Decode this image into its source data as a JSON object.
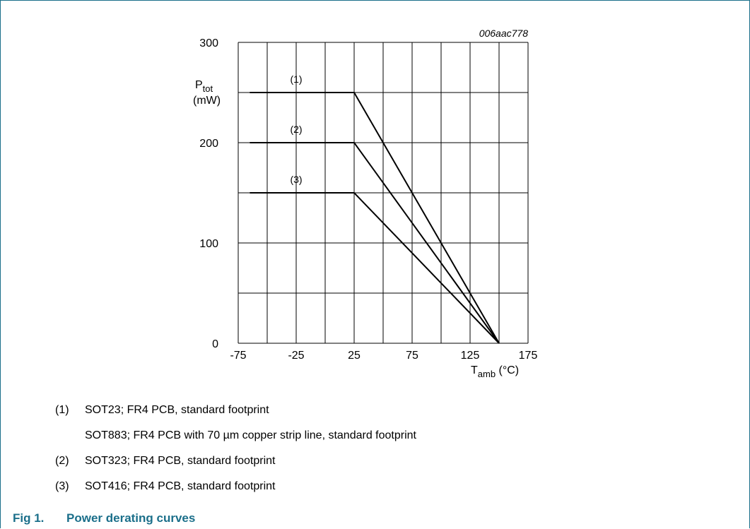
{
  "chart_data": {
    "type": "line",
    "code": "006aac778",
    "ylabel_main": "P",
    "ylabel_sub": "tot",
    "ylabel_unit": "(mW)",
    "xlabel_main": "T",
    "xlabel_sub": "amb",
    "xlabel_unit": "(°C)",
    "xlim": [
      -75,
      175
    ],
    "ylim": [
      0,
      300
    ],
    "x_ticks": [
      "-75",
      "-25",
      "25",
      "75",
      "125",
      "175"
    ],
    "y_ticks": [
      "0",
      "100",
      "200",
      "300"
    ],
    "x_grid": [
      -75,
      -50,
      -25,
      0,
      25,
      50,
      75,
      100,
      125,
      150,
      175
    ],
    "y_grid": [
      0,
      50,
      100,
      150,
      200,
      250,
      300
    ],
    "series": [
      {
        "label": "(1)",
        "label_x": -25,
        "points": [
          [
            -65,
            250
          ],
          [
            25,
            250
          ],
          [
            150,
            0
          ]
        ]
      },
      {
        "label": "(2)",
        "label_x": -25,
        "points": [
          [
            -65,
            200
          ],
          [
            25,
            200
          ],
          [
            150,
            0
          ]
        ]
      },
      {
        "label": "(3)",
        "label_x": -25,
        "points": [
          [
            -65,
            150
          ],
          [
            25,
            150
          ],
          [
            150,
            0
          ]
        ]
      }
    ]
  },
  "notes": [
    {
      "num": "(1)",
      "text": "SOT23; FR4 PCB, standard footprint"
    },
    {
      "num": "",
      "text": "SOT883; FR4 PCB with 70 µm copper strip line, standard footprint"
    },
    {
      "num": "(2)",
      "text": "SOT323; FR4 PCB, standard footprint"
    },
    {
      "num": "(3)",
      "text": "SOT416; FR4 PCB, standard footprint"
    }
  ],
  "figure": {
    "number": "Fig 1.",
    "title": "Power derating curves"
  },
  "colors": {
    "frame": "#1b6f8a",
    "caption": "#1b6f8a",
    "grid": "#000000",
    "curve": "#000000"
  }
}
